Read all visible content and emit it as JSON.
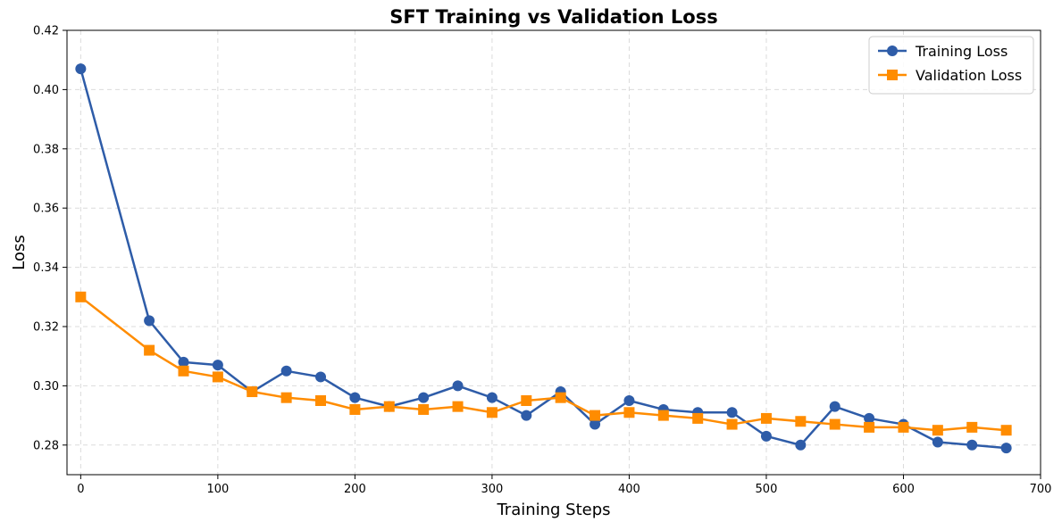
{
  "chart_data": {
    "type": "line",
    "title": "SFT Training vs Validation Loss",
    "xlabel": "Training Steps",
    "ylabel": "Loss",
    "xlim": [
      -10,
      700
    ],
    "ylim": [
      0.27,
      0.42
    ],
    "x_ticks": [
      0,
      100,
      200,
      300,
      400,
      500,
      600,
      700
    ],
    "y_ticks": [
      0.28,
      0.3,
      0.32,
      0.34,
      0.36,
      0.38,
      0.4,
      0.42
    ],
    "x_tick_labels": [
      "0",
      "100",
      "200",
      "300",
      "400",
      "500",
      "600",
      "700"
    ],
    "y_tick_labels": [
      "0.28",
      "0.30",
      "0.32",
      "0.34",
      "0.36",
      "0.38",
      "0.40",
      "0.42"
    ],
    "grid": true,
    "legend_position": "top-right",
    "x": [
      0,
      50,
      75,
      100,
      125,
      150,
      175,
      200,
      225,
      250,
      275,
      300,
      325,
      350,
      375,
      400,
      425,
      450,
      475,
      500,
      525,
      550,
      575,
      600,
      625,
      650,
      675
    ],
    "series": [
      {
        "name": "Training Loss",
        "color": "#2e5ca8",
        "marker": "circle",
        "values": [
          0.407,
          0.322,
          0.308,
          0.307,
          0.298,
          0.305,
          0.303,
          0.296,
          0.293,
          0.296,
          0.3,
          0.296,
          0.29,
          0.298,
          0.287,
          0.295,
          0.292,
          0.291,
          0.291,
          0.283,
          0.28,
          0.293,
          0.289,
          0.287,
          0.281,
          0.28,
          0.279
        ]
      },
      {
        "name": "Validation Loss",
        "color": "#ff8c00",
        "marker": "square",
        "values": [
          0.33,
          0.312,
          0.305,
          0.303,
          0.298,
          0.296,
          0.295,
          0.292,
          0.293,
          0.292,
          0.293,
          0.291,
          0.295,
          0.296,
          0.29,
          0.291,
          0.29,
          0.289,
          0.287,
          0.289,
          0.288,
          0.287,
          0.286,
          0.286,
          0.285,
          0.286,
          0.285
        ]
      }
    ]
  }
}
